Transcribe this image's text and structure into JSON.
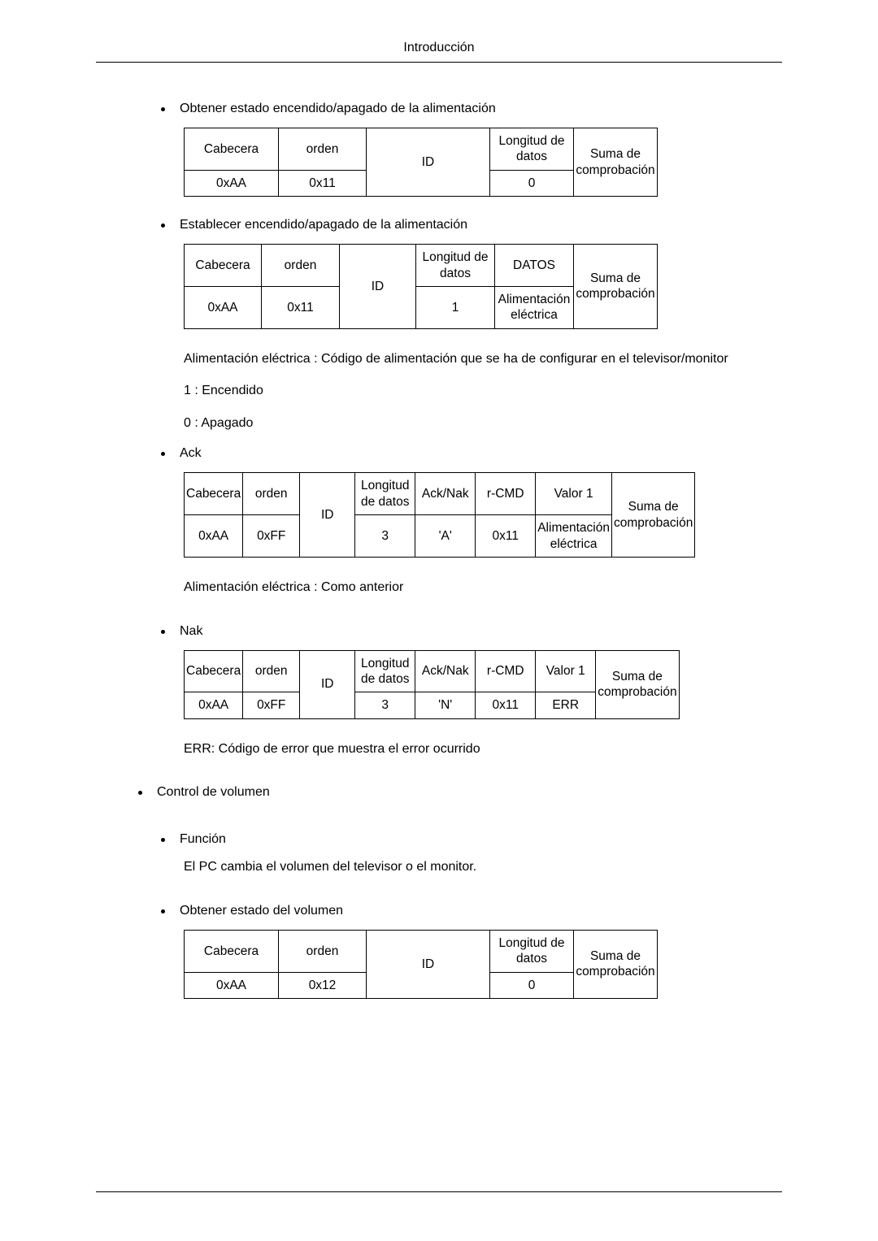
{
  "header": {
    "title": "Introducción"
  },
  "sections": {
    "power_get": {
      "bullet": "Obtener estado encendido/apagado de la alimentación",
      "table": {
        "widths": [
          116,
          108,
          152,
          103,
          103
        ],
        "rows": [
          [
            {
              "t": "Cabecera"
            },
            {
              "t": "orden"
            },
            {
              "t": "ID",
              "rowspan": 2
            },
            {
              "t": "Longitud de datos"
            },
            {
              "t": "Suma de comprobación",
              "rowspan": 2
            }
          ],
          [
            {
              "t": "0xAA"
            },
            {
              "t": "0x11"
            },
            {
              "t": "0"
            }
          ]
        ]
      }
    },
    "power_set": {
      "bullet": "Establecer encendido/apagado de la alimentación",
      "table": {
        "widths": [
          95,
          96,
          94,
          97,
          97,
          103
        ],
        "rows": [
          [
            {
              "t": "Cabecera"
            },
            {
              "t": "orden"
            },
            {
              "t": "ID",
              "rowspan": 2
            },
            {
              "t": "Longitud de datos"
            },
            {
              "t": "DATOS"
            },
            {
              "t": "Suma de comprobación",
              "rowspan": 2
            }
          ],
          [
            {
              "t": "0xAA"
            },
            {
              "t": "0x11"
            },
            {
              "t": "1"
            },
            {
              "t": "Alimentación eléctrica"
            }
          ]
        ]
      },
      "notes": [
        "Alimentación eléctrica : Código de alimentación que se ha de configurar en el televisor/monitor",
        "1 : Encendido",
        "0 : Apagado"
      ]
    },
    "ack": {
      "bullet": "Ack",
      "table": {
        "widths": [
          70,
          70,
          68,
          74,
          74,
          74,
          74,
          78
        ],
        "rows": [
          [
            {
              "t": "Cabecera"
            },
            {
              "t": "orden"
            },
            {
              "t": "ID",
              "rowspan": 2
            },
            {
              "t": "Longitud de datos"
            },
            {
              "t": "Ack/Nak"
            },
            {
              "t": "r-CMD"
            },
            {
              "t": "Valor 1"
            },
            {
              "t": "Suma de comprobación",
              "rowspan": 2
            }
          ],
          [
            {
              "t": "0xAA"
            },
            {
              "t": "0xFF"
            },
            {
              "t": "3"
            },
            {
              "t": "'A'"
            },
            {
              "t": "0x11"
            },
            {
              "t": "Alimentación eléctrica"
            }
          ]
        ]
      },
      "note": "Alimentación eléctrica : Como anterior"
    },
    "nak": {
      "bullet": "Nak",
      "table": {
        "widths": [
          70,
          70,
          68,
          74,
          74,
          74,
          74,
          78
        ],
        "rows": [
          [
            {
              "t": "Cabecera"
            },
            {
              "t": "orden"
            },
            {
              "t": "ID",
              "rowspan": 2
            },
            {
              "t": "Longitud de datos"
            },
            {
              "t": "Ack/Nak"
            },
            {
              "t": "r-CMD"
            },
            {
              "t": "Valor 1"
            },
            {
              "t": "Suma de comprobación",
              "rowspan": 2
            }
          ],
          [
            {
              "t": "0xAA"
            },
            {
              "t": "0xFF"
            },
            {
              "t": "3"
            },
            {
              "t": "'N'"
            },
            {
              "t": "0x11"
            },
            {
              "t": "ERR"
            }
          ]
        ]
      },
      "note": "ERR: Código de error que muestra el error ocurrido"
    },
    "volume": {
      "bullet": "Control de volumen",
      "func_bullet": "Función",
      "func_note": "El PC cambia el volumen del televisor o el monitor.",
      "get_bullet": "Obtener estado del volumen",
      "table": {
        "widths": [
          116,
          108,
          152,
          103,
          103
        ],
        "rows": [
          [
            {
              "t": "Cabecera"
            },
            {
              "t": "orden"
            },
            {
              "t": "ID",
              "rowspan": 2
            },
            {
              "t": "Longitud de datos"
            },
            {
              "t": "Suma de comprobación",
              "rowspan": 2
            }
          ],
          [
            {
              "t": "0xAA"
            },
            {
              "t": "0x12"
            },
            {
              "t": "0"
            }
          ]
        ]
      }
    }
  }
}
